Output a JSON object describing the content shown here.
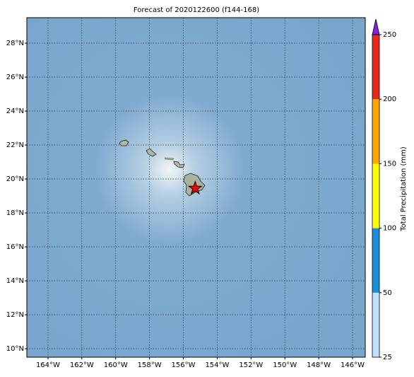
{
  "chart_data": {
    "type": "map",
    "title": "Forecast of 2020122600 (f144-168)",
    "xlim": [
      -165.25,
      -145.25
    ],
    "ylim": [
      9.5,
      29.5
    ],
    "xticks": [
      {
        "value": -164,
        "label": "164°W"
      },
      {
        "value": -162,
        "label": "162°W"
      },
      {
        "value": -160,
        "label": "160°W"
      },
      {
        "value": -158,
        "label": "158°W"
      },
      {
        "value": -156,
        "label": "156°W"
      },
      {
        "value": -154,
        "label": "154°W"
      },
      {
        "value": -152,
        "label": "152°W"
      },
      {
        "value": -150,
        "label": "150°W"
      },
      {
        "value": -148,
        "label": "148°W"
      },
      {
        "value": -146,
        "label": "146°W"
      }
    ],
    "yticks": [
      {
        "value": 10,
        "label": "10°N"
      },
      {
        "value": 12,
        "label": "12°N"
      },
      {
        "value": 14,
        "label": "14°N"
      },
      {
        "value": 16,
        "label": "16°N"
      },
      {
        "value": 18,
        "label": "18°N"
      },
      {
        "value": 20,
        "label": "20°N"
      },
      {
        "value": 22,
        "label": "22°N"
      },
      {
        "value": 24,
        "label": "24°N"
      },
      {
        "value": 26,
        "label": "26°N"
      },
      {
        "value": 28,
        "label": "28°N"
      }
    ],
    "grid": true,
    "marker": {
      "lon": -155.3,
      "lat": 19.45,
      "color": "#ff0000"
    },
    "colorbar": {
      "label": "Total Precipitation (mm)",
      "boundaries": [
        25,
        50,
        100,
        150,
        200,
        250
      ],
      "colors": [
        "#c2e0ff",
        "#1a8cd8",
        "#ffff00",
        "#ffa500",
        "#e8281e"
      ],
      "extend_color": "#8a1ee6"
    }
  }
}
